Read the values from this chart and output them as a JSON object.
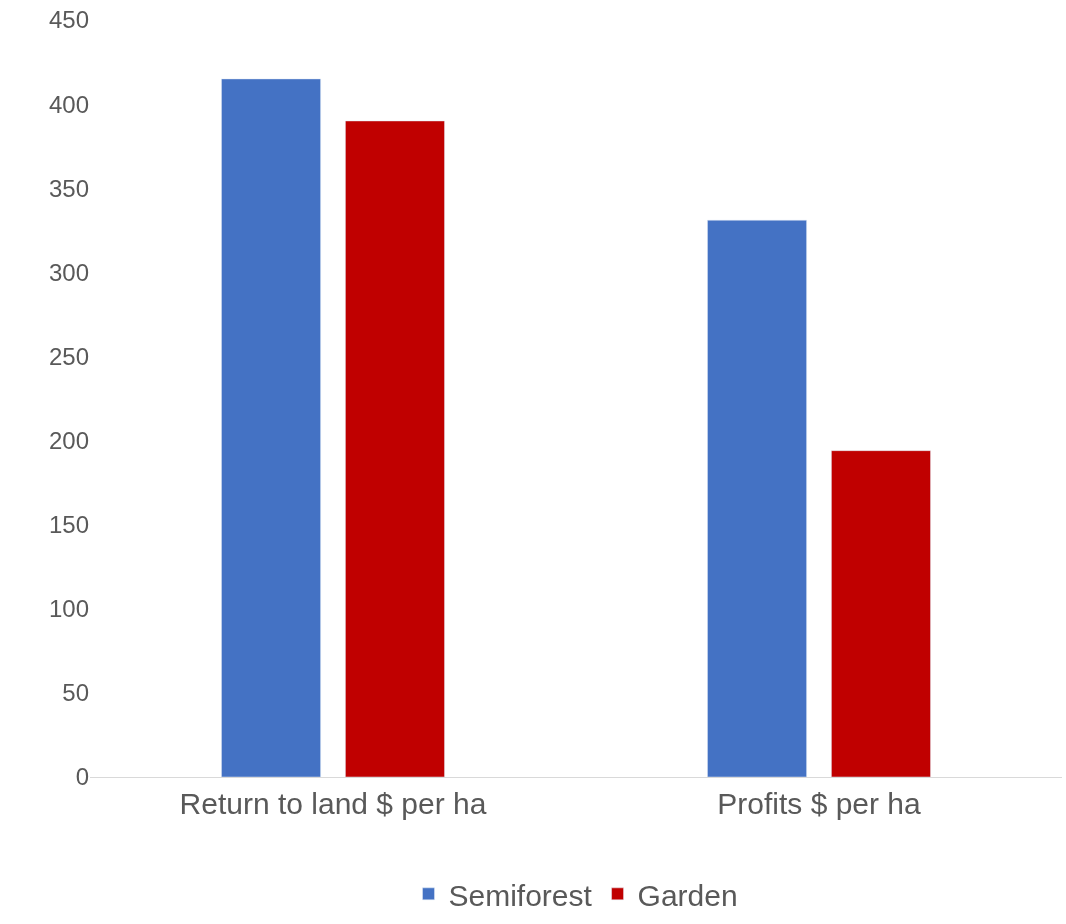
{
  "chart_data": {
    "type": "bar",
    "categories": [
      "Return to land $ per ha",
      "Profits $ per ha"
    ],
    "series": [
      {
        "name": "Semiforest",
        "color": "#4472c4",
        "values": [
          415,
          331
        ]
      },
      {
        "name": "Garden",
        "color": "#c00000",
        "values": [
          390,
          194
        ]
      }
    ],
    "ylim": [
      0,
      450
    ],
    "yticks": [
      0,
      50,
      100,
      150,
      200,
      250,
      300,
      350,
      400,
      450
    ],
    "grid": false,
    "legend": "bottom"
  }
}
